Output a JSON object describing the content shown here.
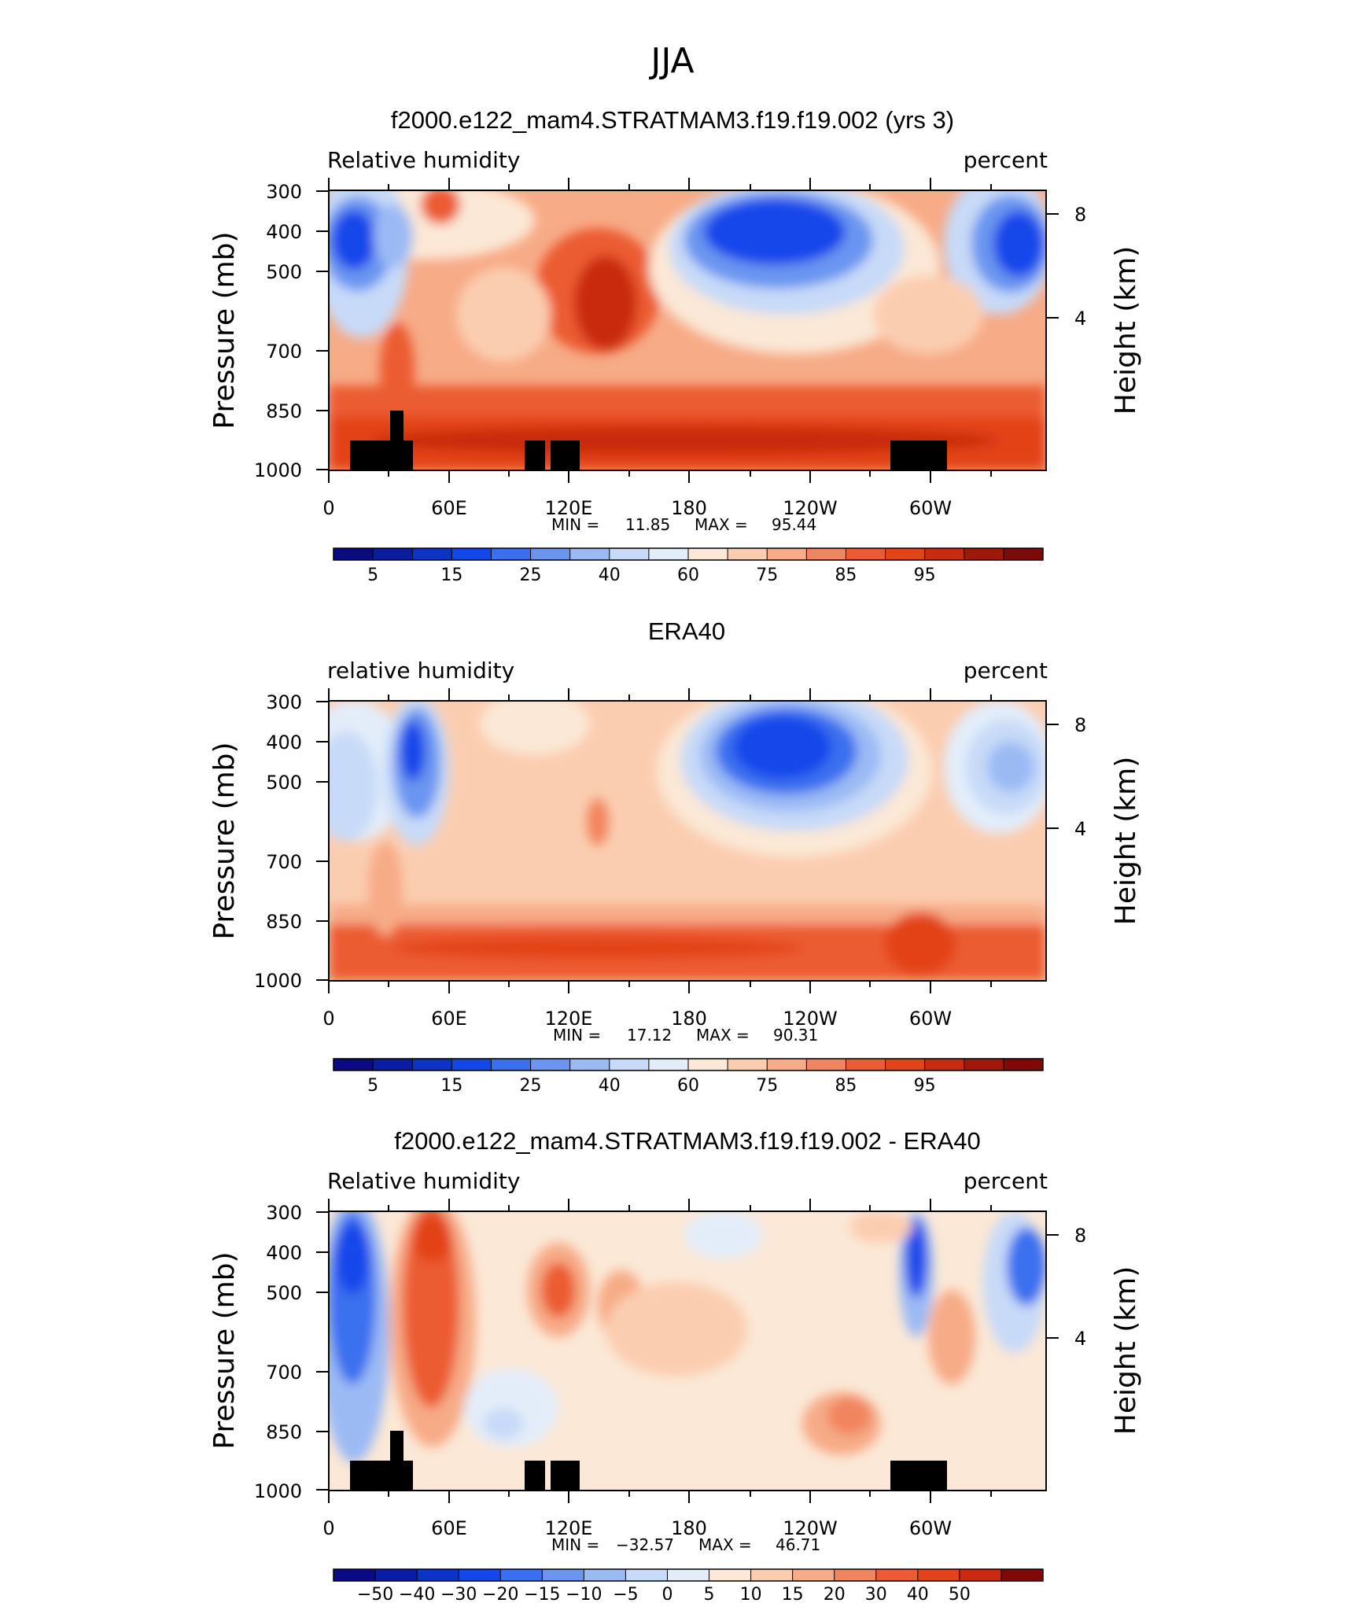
{
  "figure": {
    "title": "JJA"
  },
  "chart_data": [
    {
      "type": "heatmap",
      "title": "f2000.e122_mam4.STRATMAM3.f19.f19.002 (yrs 3)",
      "left_label": "Relative humidity",
      "right_label": "percent",
      "ylabel": "Pressure (mb)",
      "ylabel_right": "Height (km)",
      "xticks": [
        "0",
        "60E",
        "120E",
        "180",
        "120W",
        "60W"
      ],
      "yticks": [
        "300",
        "400",
        "500",
        "700",
        "850",
        "1000"
      ],
      "yticks_right": [
        "8",
        "4"
      ],
      "stats": {
        "min_label": "MIN =",
        "min": "11.85",
        "max_label": "MAX =",
        "max": "95.44"
      },
      "colorbar": {
        "labels": [
          "5",
          "15",
          "25",
          "40",
          "60",
          "75",
          "85",
          "95"
        ],
        "colors": [
          "#0b0a85",
          "#0a1ca3",
          "#0b33c6",
          "#1247ea",
          "#3a6fef",
          "#6b95f0",
          "#9bbaf4",
          "#c7daf8",
          "#e3edfa",
          "#fbe8d6",
          "#fbcdb0",
          "#f7ab87",
          "#f1855f",
          "#ec5b33",
          "#e34319",
          "#c92a10",
          "#a2170a",
          "#800808"
        ]
      },
      "ylim": [
        1000,
        300
      ],
      "xlim": [
        0,
        360
      ]
    },
    {
      "type": "heatmap",
      "title": "ERA40",
      "left_label": "relative humidity",
      "right_label": "percent",
      "ylabel": "Pressure (mb)",
      "ylabel_right": "Height (km)",
      "xticks": [
        "0",
        "60E",
        "120E",
        "180",
        "120W",
        "60W"
      ],
      "yticks": [
        "300",
        "400",
        "500",
        "700",
        "850",
        "1000"
      ],
      "yticks_right": [
        "8",
        "4"
      ],
      "stats": {
        "min_label": "MIN =",
        "min": "17.12",
        "max_label": "MAX =",
        "max": "90.31"
      },
      "colorbar": {
        "labels": [
          "5",
          "15",
          "25",
          "40",
          "60",
          "75",
          "85",
          "95"
        ],
        "colors": [
          "#0b0a85",
          "#0a1ca3",
          "#0b33c6",
          "#1247ea",
          "#3a6fef",
          "#6b95f0",
          "#9bbaf4",
          "#c7daf8",
          "#e3edfa",
          "#fbe8d6",
          "#fbcdb0",
          "#f7ab87",
          "#f1855f",
          "#ec5b33",
          "#e34319",
          "#c92a10",
          "#a2170a",
          "#800808"
        ]
      },
      "ylim": [
        1000,
        300
      ],
      "xlim": [
        0,
        360
      ]
    },
    {
      "type": "heatmap",
      "title": "f2000.e122_mam4.STRATMAM3.f19.f19.002 - ERA40",
      "left_label": "Relative humidity",
      "right_label": "percent",
      "ylabel": "Pressure (mb)",
      "ylabel_right": "Height (km)",
      "xticks": [
        "0",
        "60E",
        "120E",
        "180",
        "120W",
        "60W"
      ],
      "yticks": [
        "300",
        "400",
        "500",
        "700",
        "850",
        "1000"
      ],
      "yticks_right": [
        "8",
        "4"
      ],
      "stats": {
        "min_label": "MIN =",
        "min": "−32.57",
        "max_label": "MAX =",
        "max": "46.71"
      },
      "colorbar": {
        "labels": [
          "−50",
          "−40",
          "−30",
          "−20",
          "−15",
          "−10",
          "−5",
          "0",
          "5",
          "10",
          "15",
          "20",
          "30",
          "40",
          "50"
        ],
        "colors": [
          "#0b0a85",
          "#0a1ca3",
          "#0b33c6",
          "#1247ea",
          "#3a6fef",
          "#6b95f0",
          "#9bbaf4",
          "#c7daf8",
          "#e3edfa",
          "#fbe8d6",
          "#fbcdb0",
          "#f7ab87",
          "#f1855f",
          "#ec5b33",
          "#e34319",
          "#c92a10",
          "#800808"
        ]
      },
      "ylim": [
        1000,
        300
      ],
      "xlim": [
        0,
        360
      ]
    }
  ]
}
